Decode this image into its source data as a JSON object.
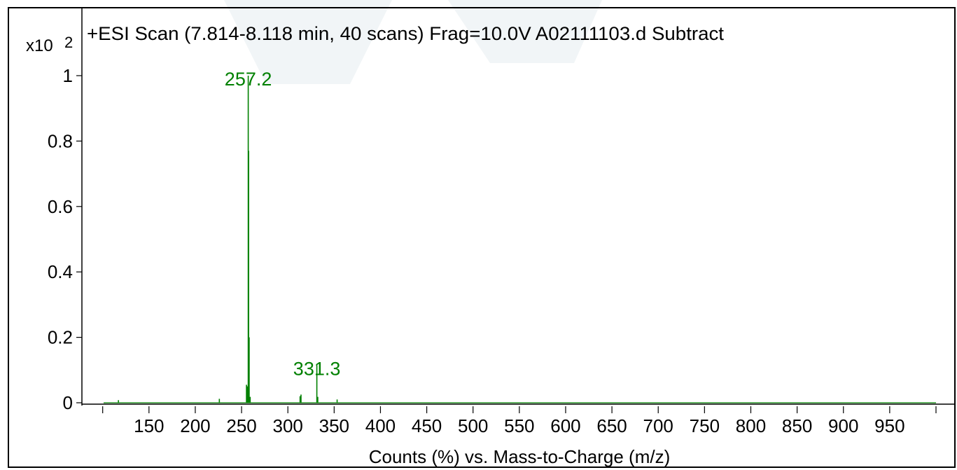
{
  "chart_data": {
    "type": "line",
    "title": "+ESI Scan (7.814-8.118 min, 40 scans) Frag=10.0V A02111103.d  Subtract",
    "xlabel": "Counts (%) vs. Mass-to-Charge (m/z)",
    "ylabel": "",
    "y_multiplier": "x10",
    "y_multiplier_exponent": "2",
    "xlim": [
      101,
      1000
    ],
    "ylim": [
      0,
      1
    ],
    "x_ticks": [
      150,
      200,
      250,
      300,
      350,
      400,
      450,
      500,
      550,
      600,
      650,
      700,
      750,
      800,
      850,
      900,
      950
    ],
    "x_tick_labels": [
      "150",
      "200",
      "250",
      "300",
      "350",
      "400",
      "450",
      "500",
      "550",
      "600",
      "650",
      "700",
      "750",
      "800",
      "850",
      "900",
      "950"
    ],
    "y_ticks": [
      0,
      0.2,
      0.4,
      0.6,
      0.8,
      1
    ],
    "y_tick_labels": [
      "0",
      "0.2",
      "0.4",
      "0.6",
      "0.8",
      "1"
    ],
    "grid": false,
    "series": [
      {
        "color": "#008000",
        "peaks": [
          {
            "x": 117,
            "y": 0.008
          },
          {
            "x": 226,
            "y": 0.012
          },
          {
            "x": 255.3,
            "y": 0.055
          },
          {
            "x": 256.2,
            "y": 0.05
          },
          {
            "x": 257.2,
            "y": 1.0
          },
          {
            "x": 257.6,
            "y": 0.77
          },
          {
            "x": 258.2,
            "y": 0.2
          },
          {
            "x": 259.3,
            "y": 0.018
          },
          {
            "x": 313.2,
            "y": 0.02
          },
          {
            "x": 314.2,
            "y": 0.025
          },
          {
            "x": 331.3,
            "y": 0.115
          },
          {
            "x": 332.3,
            "y": 0.018
          },
          {
            "x": 353.2,
            "y": 0.01
          }
        ]
      }
    ],
    "annotations": [
      {
        "x": 257.2,
        "y": 1.0,
        "text": "257.2"
      },
      {
        "x": 331.3,
        "y": 0.115,
        "text": "331.3"
      }
    ]
  }
}
